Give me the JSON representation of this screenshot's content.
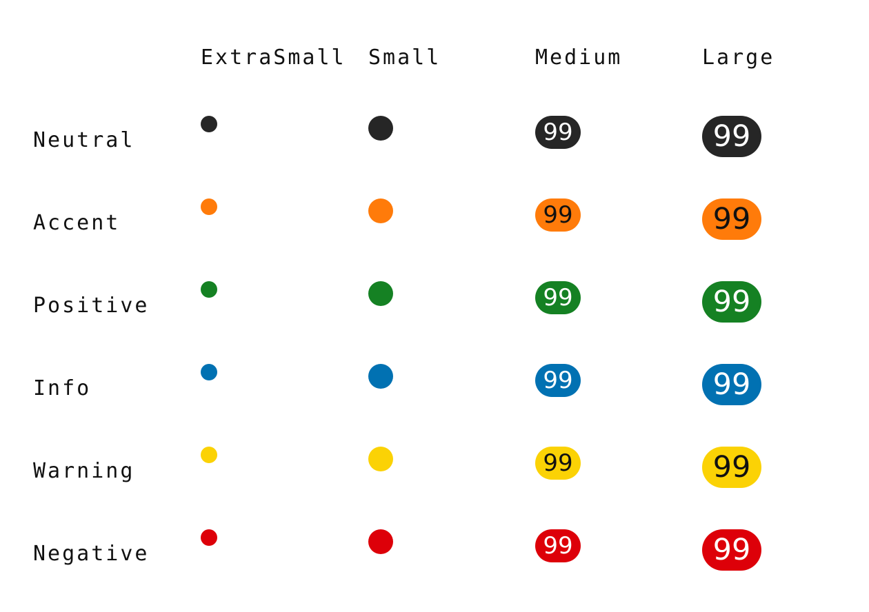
{
  "columns": [
    {
      "key": "xs",
      "label": "ExtraSmall"
    },
    {
      "key": "sm",
      "label": "Small"
    },
    {
      "key": "md",
      "label": "Medium"
    },
    {
      "key": "lg",
      "label": "Large"
    }
  ],
  "badge_value": "99",
  "rows": [
    {
      "label": "Neutral",
      "color": "#262626",
      "text_color": "#ffffff"
    },
    {
      "label": "Accent",
      "color": "#ff7b0a",
      "text_color": "#111111"
    },
    {
      "label": "Positive",
      "color": "#158123",
      "text_color": "#ffffff"
    },
    {
      "label": "Info",
      "color": "#0171b2",
      "text_color": "#ffffff"
    },
    {
      "label": "Warning",
      "color": "#fbd205",
      "text_color": "#111111"
    },
    {
      "label": "Negative",
      "color": "#dd0009",
      "text_color": "#ffffff"
    }
  ]
}
